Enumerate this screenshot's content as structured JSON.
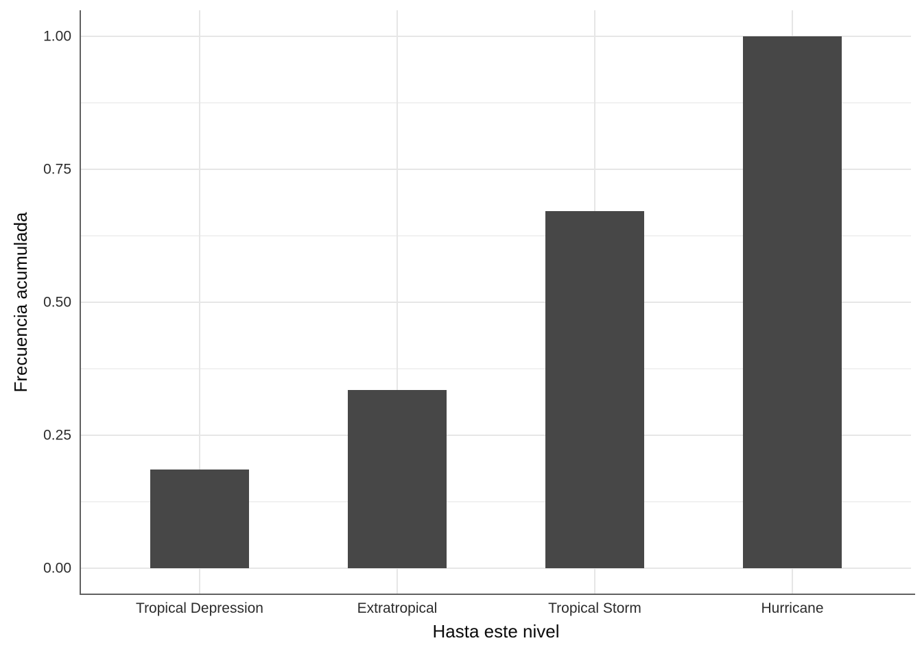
{
  "chart_data": {
    "type": "bar",
    "title": "",
    "categories": [
      "Tropical Depression",
      "Extratropical",
      "Tropical Storm",
      "Hurricane"
    ],
    "values": [
      0.185,
      0.335,
      0.672,
      1.0
    ],
    "xlabel": "Hasta este nivel",
    "ylabel": "Frecuencia acumulada",
    "ylim": [
      0,
      1.05
    ],
    "yticks": [
      {
        "value": 0.0,
        "label": "0.00"
      },
      {
        "value": 0.25,
        "label": "0.25"
      },
      {
        "value": 0.5,
        "label": "0.50"
      },
      {
        "value": 0.75,
        "label": "0.75"
      },
      {
        "value": 1.0,
        "label": "1.00"
      }
    ],
    "yminor": [
      0.125,
      0.375,
      0.625,
      0.875
    ],
    "grid": "horizontal major+minor, vertical major at category centers",
    "legend": "none",
    "bar_relative_width": 0.5,
    "colors": {
      "bar_fill": "#474747",
      "axis_line": "#606060",
      "grid_major": "#e6e6e6",
      "grid_minor": "#f1f1f1",
      "tick_text": "#2b2b2b",
      "title_text": "#0a0a0a",
      "background": "#ffffff"
    }
  }
}
